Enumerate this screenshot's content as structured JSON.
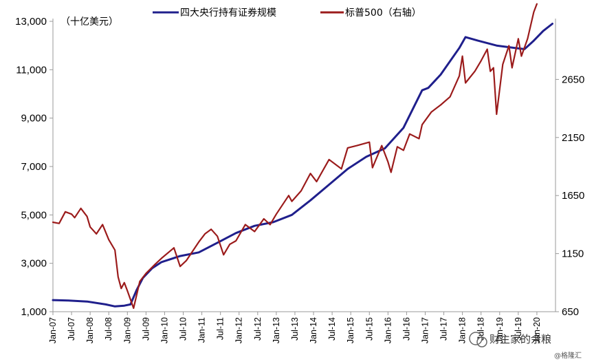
{
  "chart_data": {
    "type": "line",
    "title": "",
    "left_axis_unit": "（十亿美元）",
    "left_axis": {
      "ylim": [
        1000,
        13000
      ],
      "ticks": [
        "1,000",
        "3,000",
        "5,000",
        "7,000",
        "9,000",
        "11,000",
        "13,000"
      ]
    },
    "right_axis": {
      "ylim": [
        650,
        3150
      ],
      "ticks": [
        "650",
        "1150",
        "1650",
        "2150",
        "2650"
      ]
    },
    "x_tick_labels": [
      "Jan-07",
      "Jul-07",
      "Jan-08",
      "Jul-08",
      "Jan-09",
      "Jul-09",
      "Jan-10",
      "Jul-10",
      "Jan-11",
      "Jul-11",
      "Jan-12",
      "Jul-12",
      "Jan-13",
      "Jul-13",
      "Jan-14",
      "Jul-14",
      "Jan-15",
      "Jul-15",
      "Jan-16",
      "Jul-16",
      "Jan-17",
      "Jul-17",
      "Jan-18",
      "Jul-18",
      "Jan-19",
      "Jul-19",
      "Jan-20"
    ],
    "grid": false,
    "legend_position": "top",
    "series": [
      {
        "name": "四大央行持有证券规模",
        "axis": "left",
        "color": "#1f1f8c",
        "points": [
          [
            "2007-01",
            1480
          ],
          [
            "2007-06",
            1460
          ],
          [
            "2007-12",
            1420
          ],
          [
            "2008-06",
            1300
          ],
          [
            "2008-09",
            1220
          ],
          [
            "2008-12",
            1250
          ],
          [
            "2009-02",
            1300
          ],
          [
            "2009-04",
            1900
          ],
          [
            "2009-06",
            2400
          ],
          [
            "2009-09",
            2800
          ],
          [
            "2009-12",
            3050
          ],
          [
            "2010-06",
            3300
          ],
          [
            "2010-12",
            3450
          ],
          [
            "2011-06",
            3850
          ],
          [
            "2011-12",
            4250
          ],
          [
            "2012-06",
            4550
          ],
          [
            "2012-12",
            4700
          ],
          [
            "2013-06",
            5000
          ],
          [
            "2013-12",
            5600
          ],
          [
            "2014-06",
            6250
          ],
          [
            "2014-12",
            6900
          ],
          [
            "2015-06",
            7400
          ],
          [
            "2015-12",
            7750
          ],
          [
            "2016-06",
            8600
          ],
          [
            "2016-12",
            10150
          ],
          [
            "2017-02",
            10250
          ],
          [
            "2017-06",
            10800
          ],
          [
            "2017-12",
            11900
          ],
          [
            "2018-02",
            12350
          ],
          [
            "2018-06",
            12200
          ],
          [
            "2018-12",
            12000
          ],
          [
            "2019-06",
            11900
          ],
          [
            "2019-09",
            11850
          ],
          [
            "2019-12",
            12200
          ],
          [
            "2020-03",
            12600
          ],
          [
            "2020-06",
            12900
          ]
        ]
      },
      {
        "name": "标普500（右轴）",
        "axis": "right",
        "color": "#9b1b1b",
        "points": [
          [
            "2007-01",
            1420
          ],
          [
            "2007-03",
            1410
          ],
          [
            "2007-05",
            1510
          ],
          [
            "2007-07",
            1490
          ],
          [
            "2007-08",
            1460
          ],
          [
            "2007-10",
            1540
          ],
          [
            "2007-12",
            1470
          ],
          [
            "2008-01",
            1380
          ],
          [
            "2008-03",
            1320
          ],
          [
            "2008-05",
            1400
          ],
          [
            "2008-07",
            1270
          ],
          [
            "2008-09",
            1180
          ],
          [
            "2008-10",
            950
          ],
          [
            "2008-11",
            850
          ],
          [
            "2008-12",
            900
          ],
          [
            "2009-01",
            830
          ],
          [
            "2009-03",
            680
          ],
          [
            "2009-05",
            910
          ],
          [
            "2009-07",
            980
          ],
          [
            "2009-10",
            1060
          ],
          [
            "2009-12",
            1110
          ],
          [
            "2010-04",
            1200
          ],
          [
            "2010-06",
            1040
          ],
          [
            "2010-08",
            1090
          ],
          [
            "2010-12",
            1250
          ],
          [
            "2011-02",
            1320
          ],
          [
            "2011-04",
            1360
          ],
          [
            "2011-06",
            1300
          ],
          [
            "2011-08",
            1140
          ],
          [
            "2011-10",
            1230
          ],
          [
            "2011-12",
            1260
          ],
          [
            "2012-03",
            1400
          ],
          [
            "2012-06",
            1340
          ],
          [
            "2012-09",
            1450
          ],
          [
            "2012-11",
            1400
          ],
          [
            "2013-01",
            1490
          ],
          [
            "2013-05",
            1650
          ],
          [
            "2013-06",
            1600
          ],
          [
            "2013-09",
            1690
          ],
          [
            "2013-12",
            1840
          ],
          [
            "2014-02",
            1770
          ],
          [
            "2014-06",
            1960
          ],
          [
            "2014-08",
            1920
          ],
          [
            "2014-10",
            1880
          ],
          [
            "2014-12",
            2060
          ],
          [
            "2015-03",
            2080
          ],
          [
            "2015-07",
            2110
          ],
          [
            "2015-08",
            1890
          ],
          [
            "2015-11",
            2080
          ],
          [
            "2016-01",
            1940
          ],
          [
            "2016-02",
            1850
          ],
          [
            "2016-04",
            2070
          ],
          [
            "2016-06",
            2040
          ],
          [
            "2016-08",
            2180
          ],
          [
            "2016-11",
            2140
          ],
          [
            "2016-12",
            2260
          ],
          [
            "2017-03",
            2370
          ],
          [
            "2017-06",
            2430
          ],
          [
            "2017-09",
            2500
          ],
          [
            "2017-12",
            2680
          ],
          [
            "2018-01",
            2850
          ],
          [
            "2018-02",
            2620
          ],
          [
            "2018-05",
            2720
          ],
          [
            "2018-07",
            2810
          ],
          [
            "2018-09",
            2910
          ],
          [
            "2018-10",
            2720
          ],
          [
            "2018-11",
            2750
          ],
          [
            "2018-12",
            2350
          ],
          [
            "2019-02",
            2780
          ],
          [
            "2019-04",
            2940
          ],
          [
            "2019-05",
            2750
          ],
          [
            "2019-07",
            3000
          ],
          [
            "2019-08",
            2850
          ],
          [
            "2019-10",
            3000
          ],
          [
            "2019-12",
            3230
          ],
          [
            "2020-01",
            3300
          ]
        ]
      }
    ]
  },
  "watermark": {
    "main": "财主家的余粮",
    "sub": "@格隆汇"
  }
}
